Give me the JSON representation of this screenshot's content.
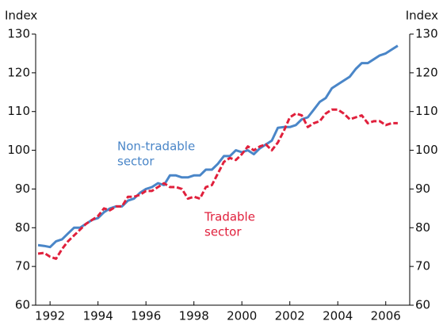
{
  "chart_data": {
    "type": "line",
    "y_label": "Index",
    "y2_label": "Index",
    "annotations": [
      {
        "lines": [
          "Non-tradable",
          "sector"
        ],
        "color": "#4a86c8"
      },
      {
        "lines": [
          "Tradable",
          "sector"
        ],
        "color": "#e0203c"
      }
    ],
    "x": [
      1991.5,
      1991.75,
      1992,
      1992.25,
      1992.5,
      1992.75,
      1993,
      1993.25,
      1993.5,
      1993.75,
      1994,
      1994.25,
      1994.5,
      1994.75,
      1995,
      1995.25,
      1995.5,
      1995.75,
      1996,
      1996.25,
      1996.5,
      1996.75,
      1997,
      1997.25,
      1997.5,
      1997.75,
      1998,
      1998.25,
      1998.5,
      1998.75,
      1999,
      1999.25,
      1999.5,
      1999.75,
      2000,
      2000.25,
      2000.5,
      2000.75,
      2001,
      2001.25,
      2001.5,
      2001.75,
      2002,
      2002.25,
      2002.5,
      2002.75,
      2003,
      2003.25,
      2003.5,
      2003.75,
      2004,
      2004.25,
      2004.5,
      2004.75,
      2005,
      2005.25,
      2005.5,
      2005.75,
      2006,
      2006.25,
      2006.5
    ],
    "series": [
      {
        "name": "Non-tradable sector",
        "color": "#4a86c8",
        "dash": false,
        "values": [
          75.5,
          75.3,
          75,
          76.5,
          77,
          78.5,
          80,
          80,
          81,
          82,
          82.5,
          84,
          85,
          85.5,
          85.5,
          87,
          87.5,
          89,
          90,
          90.5,
          91.5,
          91,
          93.5,
          93.5,
          93,
          93,
          93.5,
          93.5,
          95,
          95,
          96.5,
          98.5,
          98.5,
          100,
          99.5,
          100,
          99,
          100.5,
          101.5,
          102.5,
          105.8,
          106,
          106,
          106.5,
          108,
          108.5,
          110.5,
          112.5,
          113.5,
          116,
          117,
          118,
          119,
          121,
          122.5,
          122.5,
          123.5,
          124.5,
          125,
          126,
          127
        ]
      },
      {
        "name": "Tradable sector",
        "color": "#e0203c",
        "dash": true,
        "values": [
          73.3,
          73.5,
          72.5,
          72,
          74.5,
          76.5,
          78,
          79.5,
          81,
          82,
          83,
          85,
          84.5,
          85.5,
          85.5,
          88,
          88,
          88.5,
          89.5,
          89.5,
          90.5,
          91.5,
          90.5,
          90.5,
          90,
          87.5,
          88,
          87.5,
          90.5,
          91,
          94,
          97,
          98,
          97.5,
          99,
          101,
          100,
          101,
          101.5,
          100,
          102,
          105,
          108.5,
          109.5,
          109,
          106,
          107,
          107.5,
          109.5,
          110.5,
          110.5,
          109.5,
          108,
          108.5,
          109,
          107,
          107.5,
          107.5,
          106.5,
          107,
          107
        ]
      }
    ],
    "xlim": [
      1991.4,
      2007.0
    ],
    "xticks": [
      1992,
      1994,
      1996,
      1998,
      2000,
      2002,
      2004,
      2006
    ],
    "ylim": [
      60,
      130
    ],
    "yticks": [
      60,
      70,
      80,
      90,
      100,
      110,
      120,
      130
    ],
    "y2lim": [
      60,
      130
    ],
    "y2ticks": [
      60,
      70,
      80,
      90,
      100,
      110,
      120,
      130
    ]
  }
}
